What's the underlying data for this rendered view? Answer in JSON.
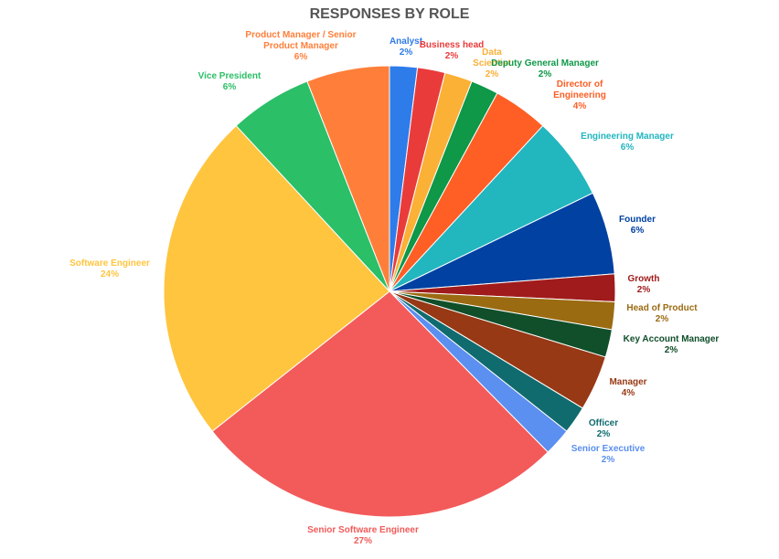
{
  "chart_data": {
    "type": "pie",
    "title": "RESPONSES BY ROLE",
    "start_angle_deg": 0,
    "direction": "clockwise",
    "slices": [
      {
        "label": "Analyst",
        "pct_label": "2%",
        "value": 2,
        "color": "#2E7BEA"
      },
      {
        "label": "Business head",
        "pct_label": "2%",
        "value": 2,
        "color": "#EA3B3B"
      },
      {
        "label": "Data Scientist",
        "pct_label": "2%",
        "value": 2,
        "color": "#FBB036"
      },
      {
        "label": "Deputy General Manager",
        "pct_label": "2%",
        "value": 2,
        "color": "#0E9848"
      },
      {
        "label": "Director of Engineering",
        "pct_label": "4%",
        "value": 4,
        "color": "#FF5E25"
      },
      {
        "label": "Engineering Manager",
        "pct_label": "6%",
        "value": 6,
        "color": "#22B6BF"
      },
      {
        "label": "Founder",
        "pct_label": "6%",
        "value": 6,
        "color": "#0041A2"
      },
      {
        "label": "Growth",
        "pct_label": "2%",
        "value": 2,
        "color": "#A01B1B"
      },
      {
        "label": "Head of Product",
        "pct_label": "2%",
        "value": 2,
        "color": "#9B6B12"
      },
      {
        "label": "Key Account Manager",
        "pct_label": "2%",
        "value": 2,
        "color": "#104F2A"
      },
      {
        "label": "Manager",
        "pct_label": "4%",
        "value": 4,
        "color": "#973915"
      },
      {
        "label": "Officer",
        "pct_label": "2%",
        "value": 2,
        "color": "#106B6E"
      },
      {
        "label": "Senior Executive",
        "pct_label": "2%",
        "value": 2,
        "color": "#5B8FF0"
      },
      {
        "label": "Senior Software Engineer",
        "pct_label": "27%",
        "value": 27,
        "color": "#F25B5A"
      },
      {
        "label": "Software Engineer",
        "pct_label": "24%",
        "value": 24,
        "color": "#FFC53F"
      },
      {
        "label": "Vice President",
        "pct_label": "6%",
        "value": 6,
        "color": "#2BBF67"
      },
      {
        "label": "Product Manager / Senior Product Manager",
        "pct_label": "6%",
        "value": 6,
        "color": "#FF7F3A"
      }
    ]
  }
}
